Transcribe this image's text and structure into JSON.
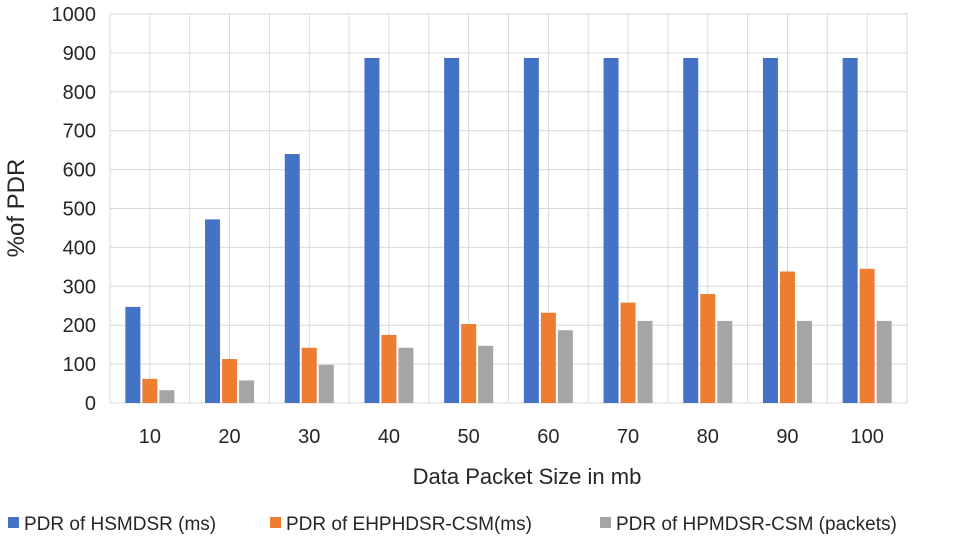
{
  "chart_data": {
    "type": "bar",
    "xlabel": "Data Packet Size in mb",
    "ylabel": "%of PDR",
    "ylim": [
      0,
      1000
    ],
    "yticks": [
      0,
      100,
      200,
      300,
      400,
      500,
      600,
      700,
      800,
      900,
      1000
    ],
    "categories": [
      "10",
      "20",
      "30",
      "40",
      "50",
      "60",
      "70",
      "80",
      "90",
      "100"
    ],
    "grid": true,
    "legend_position": "bottom",
    "series": [
      {
        "name": "PDR of HSMDSR (ms)",
        "color": "#4472c4",
        "values": [
          247,
          472,
          640,
          887,
          887,
          887,
          887,
          887,
          887,
          887
        ]
      },
      {
        "name": "PDR of EHPHDSR-CSM(ms)",
        "color": "#ed7d31",
        "values": [
          62,
          113,
          142,
          175,
          203,
          232,
          258,
          280,
          338,
          345
        ]
      },
      {
        "name": "PDR of HPMDSR-CSM (packets)",
        "color": "#a5a5a5",
        "values": [
          33,
          58,
          98,
          142,
          147,
          187,
          211,
          211,
          211,
          211
        ]
      }
    ]
  }
}
